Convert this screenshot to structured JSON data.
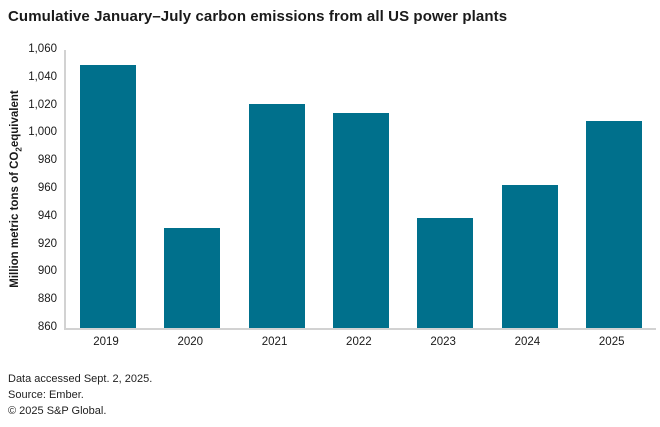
{
  "title": "Cumulative January–July carbon emissions from all US power plants",
  "chart_data": {
    "type": "bar",
    "title": "Cumulative January–July carbon emissions from all US power plants",
    "categories": [
      "2019",
      "2020",
      "2021",
      "2022",
      "2023",
      "2024",
      "2025"
    ],
    "values": [
      1049,
      932,
      1021,
      1015,
      939,
      963,
      1009
    ],
    "xlabel": "",
    "ylabel": "Million metric tons of CO₂equivalent",
    "ylabel_parts": {
      "prefix": "Million metric tons of CO",
      "sub": "2",
      "suffix": "equivalent"
    },
    "ylim": [
      860,
      1060
    ],
    "ytick_step": 20,
    "ytick_labels": [
      "860",
      "880",
      "900",
      "920",
      "940",
      "960",
      "980",
      "1,000",
      "1,020",
      "1,040",
      "1,060"
    ],
    "grid": false,
    "legend": null,
    "bar_color": "#00708C",
    "axis_color": "#d2d2d2"
  },
  "footer": {
    "line1": "Data accessed Sept. 2, 2025.",
    "line2": "Source: Ember.",
    "line3": "© 2025 S&P Global."
  }
}
